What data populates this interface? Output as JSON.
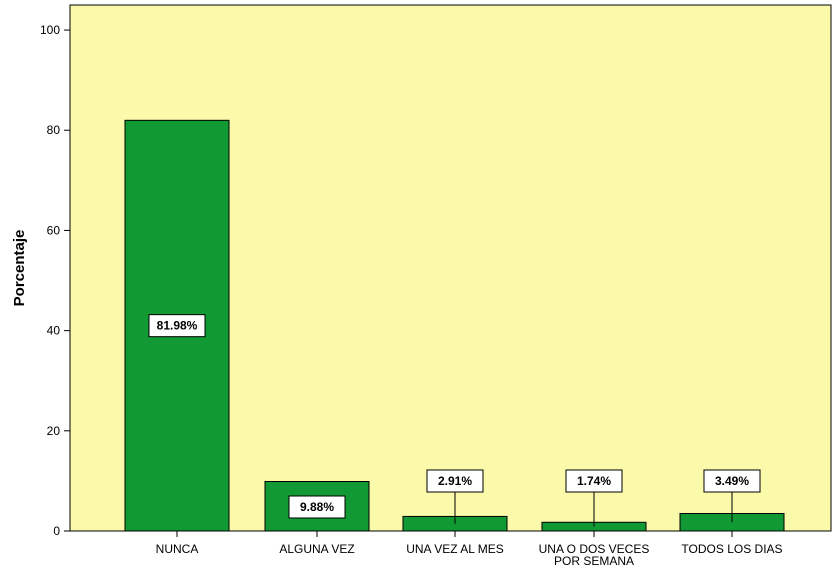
{
  "chart_data": {
    "type": "bar",
    "ylabel": "Porcentaje",
    "ylim": [
      0,
      105
    ],
    "yticks": [
      0,
      20,
      40,
      60,
      80,
      100
    ],
    "grid": false,
    "categories": [
      [
        "NUNCA"
      ],
      [
        "ALGUNA VEZ"
      ],
      [
        "UNA VEZ AL MES"
      ],
      [
        "UNA O DOS VECES",
        "POR SEMANA"
      ],
      [
        "TODOS LOS DIAS"
      ]
    ],
    "values": [
      81.98,
      9.88,
      2.91,
      1.74,
      3.49
    ],
    "data_labels": [
      "81.98%",
      "9.88%",
      "2.91%",
      "1.74%",
      "3.49%"
    ],
    "colors": {
      "plot_background": "#fafaaa",
      "bar_fill": "#119933",
      "bar_stroke": "#000000",
      "label_box": "#ffffff"
    }
  }
}
